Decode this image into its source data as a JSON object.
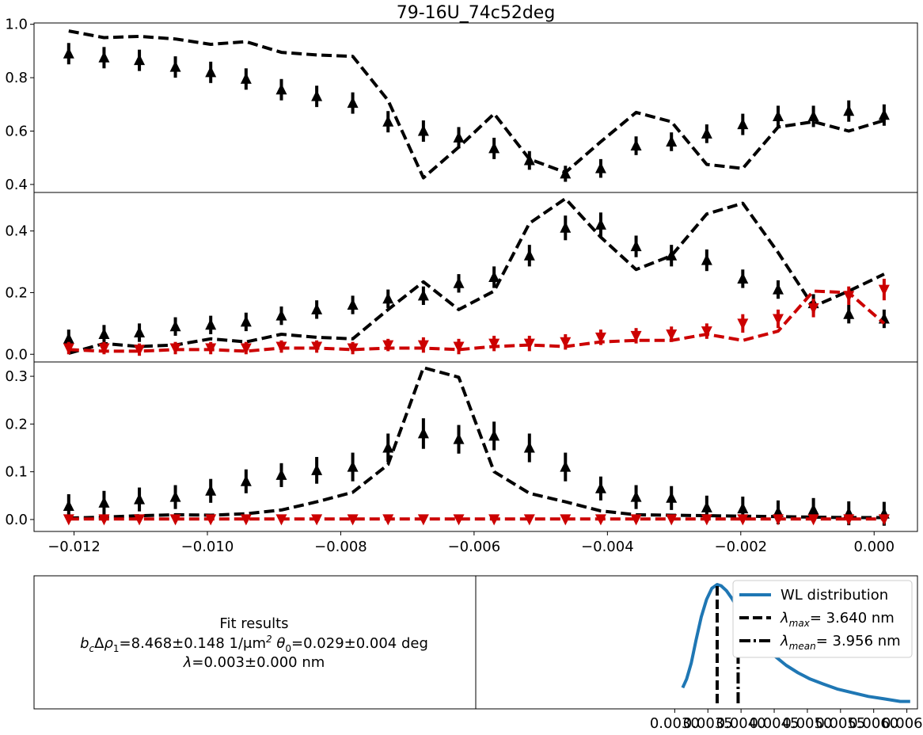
{
  "chart_data": [
    {
      "type": "line",
      "title": "79-16U_74c52deg",
      "panel": "top",
      "x": [
        -0.01208,
        -0.01155,
        -0.01102,
        -0.01048,
        -0.00995,
        -0.00942,
        -0.00889,
        -0.00836,
        -0.00782,
        -0.00729,
        -0.00676,
        -0.00623,
        -0.0057,
        -0.00517,
        -0.00463,
        -0.0041,
        -0.00357,
        -0.00304,
        -0.00251,
        -0.00197,
        -0.00144,
        -0.00091,
        -0.00038,
        0.00015
      ],
      "ylim": [
        0.37,
        1.005
      ],
      "yticks": [
        "0.4",
        "0.6",
        "0.8",
        "1.0"
      ],
      "series": [
        {
          "role": "data",
          "color": "#000000",
          "marker": "triangle-up",
          "values": [
            0.89,
            0.875,
            0.865,
            0.84,
            0.82,
            0.795,
            0.755,
            0.73,
            0.705,
            0.635,
            0.6,
            0.575,
            0.535,
            0.49,
            0.44,
            0.46,
            0.545,
            0.56,
            0.59,
            0.625,
            0.655,
            0.655,
            0.675,
            0.66
          ],
          "errors": [
            0.04,
            0.04,
            0.04,
            0.04,
            0.04,
            0.04,
            0.04,
            0.04,
            0.04,
            0.04,
            0.04,
            0.04,
            0.04,
            0.035,
            0.03,
            0.035,
            0.035,
            0.035,
            0.035,
            0.04,
            0.04,
            0.04,
            0.04,
            0.04
          ]
        },
        {
          "role": "fit",
          "color": "#000000",
          "style": "dashed",
          "values": [
            0.975,
            0.95,
            0.955,
            0.945,
            0.925,
            0.935,
            0.895,
            0.885,
            0.88,
            0.715,
            0.425,
            0.54,
            0.665,
            0.495,
            0.445,
            0.56,
            0.67,
            0.635,
            0.475,
            0.46,
            0.615,
            0.635,
            0.6,
            0.64
          ]
        }
      ]
    },
    {
      "type": "line",
      "panel": "middle",
      "x": [
        -0.01208,
        -0.01155,
        -0.01102,
        -0.01048,
        -0.00995,
        -0.00942,
        -0.00889,
        -0.00836,
        -0.00782,
        -0.00729,
        -0.00676,
        -0.00623,
        -0.0057,
        -0.00517,
        -0.00463,
        -0.0041,
        -0.00357,
        -0.00304,
        -0.00251,
        -0.00197,
        -0.00144,
        -0.00091,
        -0.00038,
        0.00015
      ],
      "ylim": [
        -0.025,
        0.525
      ],
      "yticks": [
        "0.0",
        "0.2",
        "0.4"
      ],
      "series": [
        {
          "role": "data",
          "color": "#000000",
          "marker": "triangle-up",
          "values": [
            0.05,
            0.065,
            0.07,
            0.09,
            0.095,
            0.105,
            0.125,
            0.145,
            0.16,
            0.18,
            0.19,
            0.23,
            0.25,
            0.32,
            0.41,
            0.42,
            0.35,
            0.32,
            0.305,
            0.245,
            0.21,
            0.165,
            0.13,
            0.115
          ],
          "errors": [
            0.03,
            0.03,
            0.03,
            0.03,
            0.03,
            0.03,
            0.03,
            0.03,
            0.03,
            0.03,
            0.03,
            0.03,
            0.035,
            0.035,
            0.04,
            0.04,
            0.035,
            0.035,
            0.035,
            0.03,
            0.03,
            0.03,
            0.03,
            0.03
          ]
        },
        {
          "role": "fit",
          "color": "#000000",
          "style": "dashed",
          "values": [
            0.003,
            0.035,
            0.025,
            0.03,
            0.05,
            0.04,
            0.065,
            0.055,
            0.05,
            0.145,
            0.235,
            0.145,
            0.205,
            0.425,
            0.505,
            0.38,
            0.275,
            0.32,
            0.455,
            0.49,
            0.33,
            0.155,
            0.205,
            0.26
          ]
        },
        {
          "role": "data",
          "color": "#cc0000",
          "marker": "triangle-down",
          "values": [
            0.02,
            0.02,
            0.015,
            0.02,
            0.02,
            0.02,
            0.025,
            0.025,
            0.02,
            0.03,
            0.03,
            0.025,
            0.035,
            0.035,
            0.04,
            0.055,
            0.06,
            0.065,
            0.075,
            0.1,
            0.115,
            0.15,
            0.19,
            0.21
          ],
          "errors": [
            0.02,
            0.02,
            0.02,
            0.02,
            0.02,
            0.02,
            0.02,
            0.02,
            0.02,
            0.02,
            0.025,
            0.025,
            0.025,
            0.025,
            0.025,
            0.025,
            0.025,
            0.025,
            0.025,
            0.03,
            0.03,
            0.03,
            0.03,
            0.035
          ]
        },
        {
          "role": "fit",
          "color": "#cc0000",
          "style": "dashed",
          "values": [
            0.015,
            0.01,
            0.01,
            0.015,
            0.015,
            0.01,
            0.02,
            0.02,
            0.015,
            0.02,
            0.02,
            0.015,
            0.025,
            0.03,
            0.025,
            0.04,
            0.045,
            0.045,
            0.065,
            0.045,
            0.075,
            0.205,
            0.2,
            0.1
          ]
        }
      ]
    },
    {
      "type": "line",
      "panel": "bottom",
      "x": [
        -0.01208,
        -0.01155,
        -0.01102,
        -0.01048,
        -0.00995,
        -0.00942,
        -0.00889,
        -0.00836,
        -0.00782,
        -0.00729,
        -0.00676,
        -0.00623,
        -0.0057,
        -0.00517,
        -0.00463,
        -0.0041,
        -0.00357,
        -0.00304,
        -0.00251,
        -0.00197,
        -0.00144,
        -0.00091,
        -0.00038,
        0.00015
      ],
      "xlim": [
        -0.0126,
        0.00065
      ],
      "xticks": [
        "−0.012",
        "−0.010",
        "−0.008",
        "−0.006",
        "−0.004",
        "−0.002",
        "0.000"
      ],
      "ylim": [
        -0.025,
        0.33
      ],
      "yticks": [
        "0.0",
        "0.1",
        "0.2",
        "0.3"
      ],
      "series": [
        {
          "role": "data",
          "color": "#000000",
          "marker": "triangle-up",
          "values": [
            0.028,
            0.035,
            0.042,
            0.047,
            0.06,
            0.08,
            0.093,
            0.103,
            0.11,
            0.15,
            0.18,
            0.168,
            0.175,
            0.15,
            0.11,
            0.065,
            0.047,
            0.045,
            0.025,
            0.023,
            0.015,
            0.02,
            0.013,
            0.012
          ],
          "errors": [
            0.025,
            0.025,
            0.025,
            0.025,
            0.025,
            0.025,
            0.025,
            0.028,
            0.03,
            0.03,
            0.032,
            0.03,
            0.03,
            0.03,
            0.03,
            0.025,
            0.025,
            0.025,
            0.025,
            0.025,
            0.025,
            0.025,
            0.025,
            0.025
          ]
        },
        {
          "role": "fit",
          "color": "#000000",
          "style": "dashed",
          "values": [
            0.003,
            0.005,
            0.008,
            0.01,
            0.009,
            0.012,
            0.02,
            0.037,
            0.057,
            0.115,
            0.318,
            0.298,
            0.1,
            0.055,
            0.037,
            0.018,
            0.01,
            0.009,
            0.008,
            0.007,
            0.006,
            0.005,
            0.004,
            0.004
          ],
          "errors": []
        },
        {
          "role": "data",
          "color": "#cc0000",
          "marker": "triangle-down",
          "values": [
            0.001,
            0.001,
            0.001,
            0.001,
            0.001,
            0.001,
            0.001,
            0.001,
            0.001,
            0.001,
            0.001,
            0.001,
            0.001,
            0.001,
            0.001,
            0.001,
            0.001,
            0.001,
            0.001,
            0.001,
            0.001,
            0.001,
            0.001,
            0.001
          ],
          "errors": []
        },
        {
          "role": "fit",
          "color": "#cc0000",
          "style": "dashed",
          "values": [
            0.001,
            0.001,
            0.001,
            0.001,
            0.001,
            0.001,
            0.001,
            0.001,
            0.001,
            0.001,
            0.001,
            0.001,
            0.001,
            0.001,
            0.001,
            0.001,
            0.001,
            0.001,
            0.001,
            0.001,
            0.001,
            0.001,
            0.001,
            0.001
          ]
        }
      ]
    },
    {
      "type": "line",
      "panel": "wavelength",
      "xlim": [
        0.0,
        0.00666
      ],
      "xticks": [
        "0.0030",
        "0.0035",
        "0.0040",
        "0.0045",
        "0.0050",
        "0.0055",
        "0.0060",
        "0.0065"
      ],
      "ylim": [
        0.0,
        1.07
      ],
      "curve": {
        "name": "WL distribution",
        "color": "#1f77b4",
        "x": [
          0.00312,
          0.00318,
          0.00325,
          0.00332,
          0.0034,
          0.00348,
          0.00356,
          0.00364,
          0.0037,
          0.00378,
          0.00386,
          0.00394,
          0.00402,
          0.00412,
          0.00424,
          0.00438,
          0.00452,
          0.00468,
          0.00486,
          0.00504,
          0.00524,
          0.00545,
          0.00568,
          0.00592,
          0.00616,
          0.0064,
          0.00655
        ],
        "y": [
          0.17,
          0.24,
          0.37,
          0.55,
          0.74,
          0.88,
          0.97,
          1.0,
          0.99,
          0.95,
          0.89,
          0.82,
          0.75,
          0.67,
          0.58,
          0.49,
          0.42,
          0.35,
          0.29,
          0.24,
          0.2,
          0.16,
          0.13,
          0.1,
          0.08,
          0.06,
          0.06
        ]
      },
      "lines": [
        {
          "name": "$\\lambda_{max} = 3.640$ nm",
          "x": 0.00364,
          "style": "dashed"
        },
        {
          "name": "$\\lambda_{mean} = 3.956$ nm",
          "x": 0.003956,
          "style": "dashdot"
        }
      ]
    }
  ],
  "legend": {
    "wl": "WL distribution",
    "lmax_value": "= 3.640 nm",
    "lmean_value": "= 3.956 nm"
  },
  "fit_results": {
    "heading": "Fit results",
    "line2": "=8.468±0.148 1/μm",
    "theta": "=0.029±0.004 deg",
    "lambda": "=0.003±0.000 nm"
  }
}
